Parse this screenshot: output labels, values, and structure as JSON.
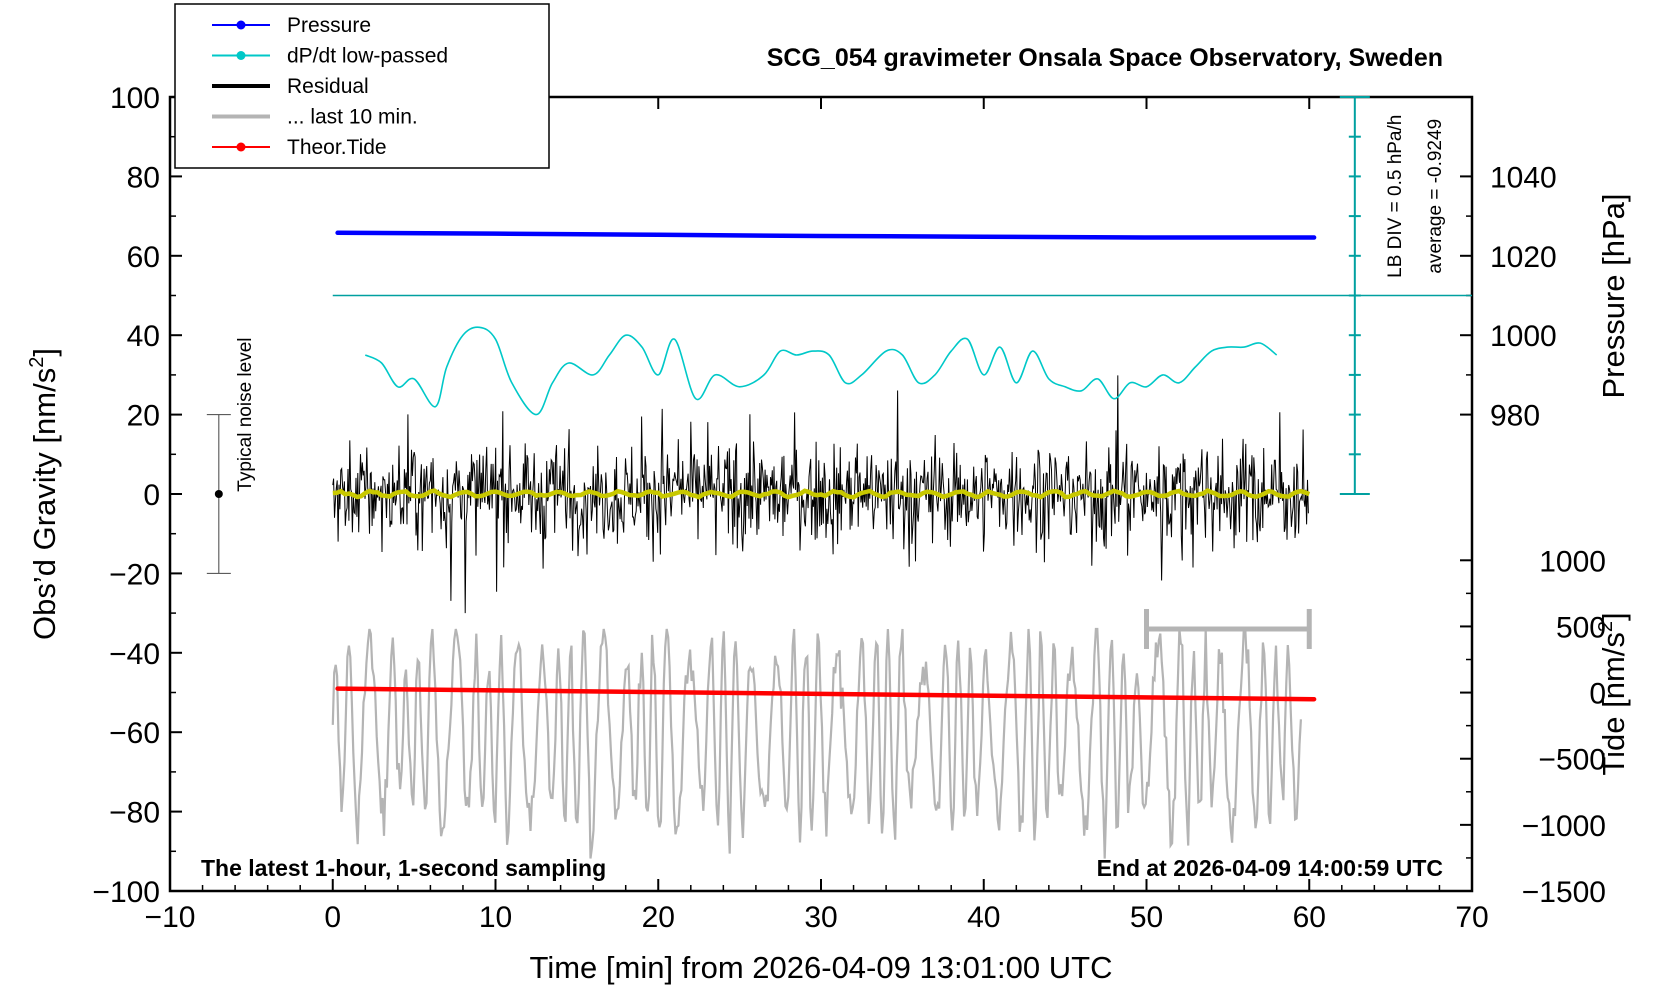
{
  "chart_data": {
    "type": "line",
    "title": "SCG_054 gravimeter Onsala Space Observatory, Sweden",
    "xlabel": "Time [min] from 2026-04-09 13:01:00 UTC",
    "ylabel_main": "Obs’d Gravity [nm/s",
    "ylabel_main_sup": "2",
    "ylabel_main_end": "]",
    "ylabel_pressure": "Pressure [hPa]",
    "ylabel_tide": "Tide [nm/s",
    "ylabel_tide_sup": "2",
    "ylabel_tide_end": "]",
    "xlim": [
      -10,
      70
    ],
    "ylim": [
      -100,
      100
    ],
    "x_ticks": [
      "−10",
      "0",
      "10",
      "20",
      "30",
      "40",
      "50",
      "60",
      "70"
    ],
    "x_tick_values": [
      -10,
      0,
      10,
      20,
      30,
      40,
      50,
      60,
      70
    ],
    "y_ticks": [
      "−100",
      "−80",
      "−60",
      "−40",
      "−20",
      "0",
      "20",
      "40",
      "60",
      "80",
      "100"
    ],
    "y_tick_values": [
      -100,
      -80,
      -60,
      -40,
      -20,
      0,
      20,
      40,
      60,
      80,
      100
    ],
    "pressure_axis": {
      "ticks": [
        "980",
        "1000",
        "1020",
        "1040"
      ],
      "tick_values": [
        980,
        1000,
        1020,
        1040
      ],
      "map": {
        "value_a": 980,
        "gravity_a": 20,
        "value_b": 1040,
        "gravity_b": 80
      }
    },
    "tide_axis": {
      "ticks": [
        "−1500",
        "−1000",
        "−500",
        "0",
        "500",
        "1000"
      ],
      "tick_values": [
        -1500,
        -1000,
        -500,
        0,
        500,
        1000
      ],
      "map": {
        "value_a": -1500,
        "gravity_a": -100,
        "value_b": 1000,
        "gravity_b": -16.7
      }
    },
    "legend": [
      {
        "label": "Pressure",
        "color": "#0000ff",
        "marker": true
      },
      {
        "label": "dP/dt low-passed",
        "color": "#00c8c8",
        "marker": true
      },
      {
        "label": "Residual",
        "color": "#000000",
        "marker": false
      },
      {
        "label": "... last 10 min.",
        "color": "#b4b4b4",
        "marker": false
      },
      {
        "label": "Theor.Tide",
        "color": "#ff0000",
        "marker": true
      }
    ],
    "series": [
      {
        "name": "Pressure",
        "axis": "pressure",
        "color": "#0000ff",
        "x": [
          0.3,
          10,
          20,
          30,
          40,
          50,
          60.3
        ],
        "values": [
          1025.8,
          1025.6,
          1025.3,
          1025.0,
          1024.8,
          1024.6,
          1024.6
        ]
      },
      {
        "name": "dP/dt low-passed",
        "axis": "gravity",
        "color": "#00c8c8",
        "x": [
          2,
          3,
          4,
          5,
          6.3,
          7,
          8,
          9,
          10,
          11,
          12.5,
          13.5,
          14.5,
          16,
          17,
          18,
          19,
          20,
          21,
          22.3,
          23.5,
          25,
          26.5,
          27.5,
          28.5,
          29.5,
          30.5,
          31.5,
          32.5,
          34,
          35,
          36,
          37,
          38,
          39,
          40,
          41,
          42,
          43,
          44,
          45,
          46,
          47,
          48,
          49,
          50,
          51,
          52,
          53,
          54,
          55,
          56,
          57,
          58
        ],
        "values": [
          35,
          33,
          27,
          29,
          22,
          32,
          40,
          42,
          39,
          28,
          20,
          28,
          33,
          30,
          35,
          40,
          37,
          30,
          39,
          24,
          30,
          27,
          30,
          36,
          35,
          36,
          35,
          28,
          30,
          36,
          35,
          28,
          30,
          36,
          39,
          30,
          37,
          28,
          36,
          29,
          27,
          26,
          29,
          24,
          28,
          27,
          30,
          28,
          32,
          36,
          37,
          37,
          38,
          35
        ]
      },
      {
        "name": "Theor.Tide",
        "axis": "tide",
        "color": "#ff0000",
        "x": [
          0.3,
          60.3
        ],
        "values": [
          30,
          -50
        ]
      }
    ],
    "noise_bar": {
      "label": "Typical noise level",
      "x": -7,
      "center": 0,
      "low": -20,
      "high": 20
    },
    "dpdt_scale": {
      "div_label": "LB DIV = 0.5 hPa/h",
      "average_label": "average = -0.9249",
      "x": 62.8,
      "bottom": 0,
      "top": 100,
      "divisions": 10,
      "average_level": 50
    },
    "window_marker": {
      "x_start": 50,
      "x_end": 60,
      "level": -34
    },
    "annotation_left": "The latest 1-hour, 1-second sampling",
    "annotation_right": "End at 2026-04-09 14:00:59 UTC"
  }
}
